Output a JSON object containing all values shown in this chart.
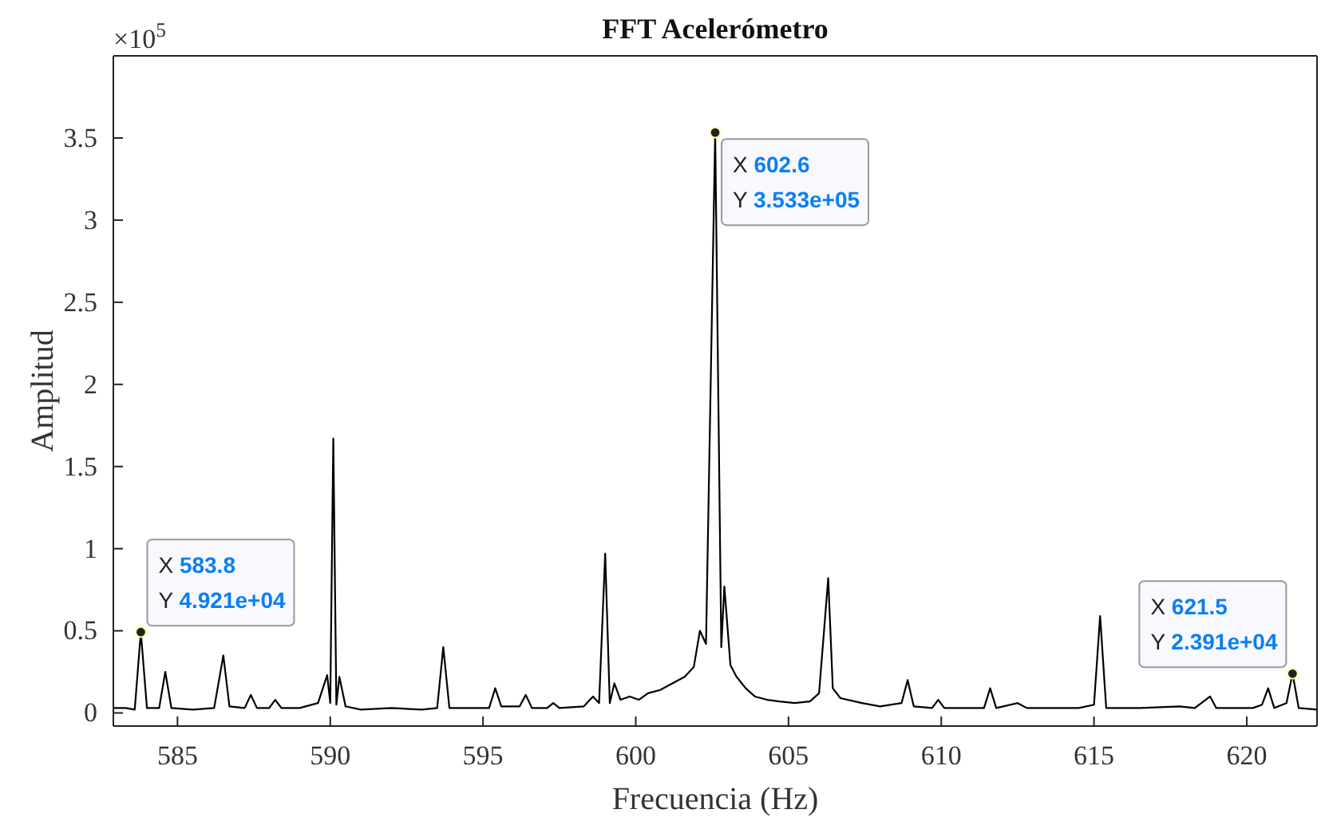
{
  "chart_data": {
    "type": "line",
    "title": "FFT Acelerómetro",
    "xlabel": "Frecuencia (Hz)",
    "ylabel": "Amplitud",
    "xlim": [
      582.9,
      622.3
    ],
    "xticks": [
      585,
      590,
      595,
      600,
      605,
      610,
      615,
      620
    ],
    "ylim": [
      -0.08,
      4
    ],
    "yticks": [
      0,
      0.5,
      1,
      1.5,
      2,
      2.5,
      3,
      3.5
    ],
    "grid": false,
    "marker": "none",
    "line_style": "solid",
    "annotations": [
      "×10$^{5}$",
      {
        "text": "X 583.8\nY 4.921e+04",
        "x": 583.8,
        "y": 0.4921
      },
      {
        "text": "X 602.6\nY 3.533e+05",
        "x": 602.6,
        "y": 3.533
      },
      {
        "text": "X 621.5\nY 2.391e+04",
        "x": 621.5,
        "y": 0.2391
      }
    ],
    "series": [
      {
        "color": "#000000",
        "x": [
          582.9,
          583.3,
          583.6,
          583.8,
          584.0,
          584.4,
          584.6,
          584.8,
          585.5,
          586.2,
          586.5,
          586.7,
          587.2,
          587.4,
          587.6,
          588.0,
          588.2,
          588.4,
          589.0,
          589.6,
          589.9,
          590.0,
          590.1,
          590.2,
          590.3,
          590.5,
          591.0,
          592.0,
          593.0,
          593.5,
          593.7,
          593.9,
          594.5,
          595.2,
          595.4,
          595.6,
          596.2,
          596.4,
          596.6,
          597.1,
          597.3,
          597.5,
          598.3,
          598.6,
          598.8,
          599.0,
          599.15,
          599.3,
          599.5,
          599.8,
          600.1,
          600.4,
          600.8,
          601.2,
          601.6,
          601.9,
          602.1,
          602.3,
          602.6,
          602.8,
          602.9,
          603.1,
          603.3,
          603.6,
          603.9,
          604.3,
          604.7,
          605.2,
          605.7,
          606.0,
          606.3,
          606.45,
          606.7,
          607.4,
          608.0,
          608.7,
          608.9,
          609.1,
          609.7,
          609.9,
          610.1,
          611.0,
          611.4,
          611.6,
          611.8,
          612.5,
          612.8,
          613.5,
          614.5,
          615.0,
          615.2,
          615.4,
          616.5,
          617.8,
          618.3,
          618.8,
          619.0,
          620.2,
          620.5,
          620.7,
          620.9,
          621.3,
          621.5,
          621.7,
          622.3
        ],
        "values": [
          0.03,
          0.03,
          0.02,
          0.4921,
          0.03,
          0.03,
          0.25,
          0.03,
          0.02,
          0.03,
          0.35,
          0.04,
          0.03,
          0.11,
          0.03,
          0.03,
          0.08,
          0.03,
          0.03,
          0.06,
          0.23,
          0.06,
          1.67,
          0.05,
          0.22,
          0.04,
          0.02,
          0.03,
          0.02,
          0.03,
          0.4,
          0.03,
          0.03,
          0.03,
          0.15,
          0.04,
          0.04,
          0.11,
          0.03,
          0.03,
          0.06,
          0.03,
          0.04,
          0.1,
          0.06,
          0.97,
          0.06,
          0.18,
          0.08,
          0.1,
          0.08,
          0.12,
          0.14,
          0.18,
          0.22,
          0.28,
          0.5,
          0.42,
          3.533,
          0.4,
          0.77,
          0.29,
          0.22,
          0.15,
          0.1,
          0.08,
          0.07,
          0.06,
          0.07,
          0.12,
          0.82,
          0.15,
          0.09,
          0.06,
          0.04,
          0.06,
          0.2,
          0.04,
          0.03,
          0.08,
          0.03,
          0.03,
          0.03,
          0.15,
          0.03,
          0.06,
          0.03,
          0.03,
          0.03,
          0.05,
          0.59,
          0.03,
          0.03,
          0.04,
          0.03,
          0.1,
          0.03,
          0.03,
          0.05,
          0.15,
          0.03,
          0.06,
          0.2391,
          0.03,
          0.02
        ]
      }
    ]
  }
}
